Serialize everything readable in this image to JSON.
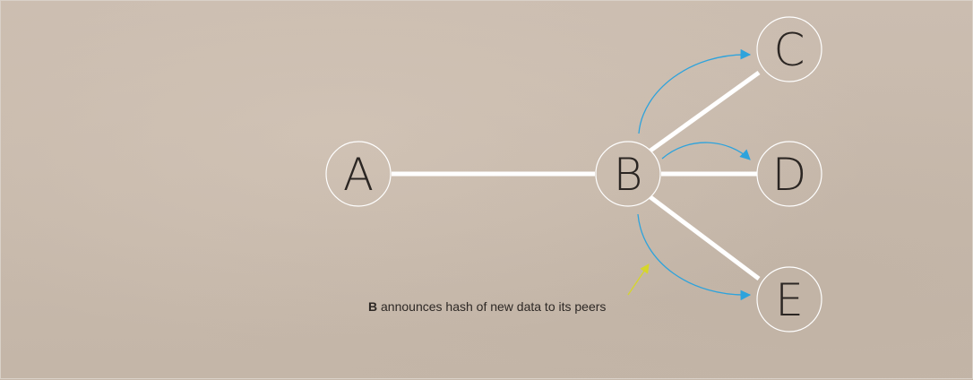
{
  "nodes": [
    {
      "id": "A",
      "label": "A"
    },
    {
      "id": "B",
      "label": "B"
    },
    {
      "id": "C",
      "label": "C"
    },
    {
      "id": "D",
      "label": "D"
    },
    {
      "id": "E",
      "label": "E"
    }
  ],
  "edges": [
    {
      "from": "A",
      "to": "B"
    },
    {
      "from": "B",
      "to": "C"
    },
    {
      "from": "B",
      "to": "D"
    },
    {
      "from": "B",
      "to": "E"
    }
  ],
  "announcements": [
    {
      "from": "B",
      "to": "C"
    },
    {
      "from": "B",
      "to": "D"
    },
    {
      "from": "B",
      "to": "E"
    }
  ],
  "caption": {
    "bold": "B",
    "text": " announces hash of new data to its peers"
  },
  "colors": {
    "background": "#c6b8ab",
    "edge": "#ffffff",
    "node_stroke": "#ffffff",
    "announce_arrow": "#2ea3dc",
    "pointer_arrow": "#d6d62a",
    "text": "#2b2623"
  }
}
